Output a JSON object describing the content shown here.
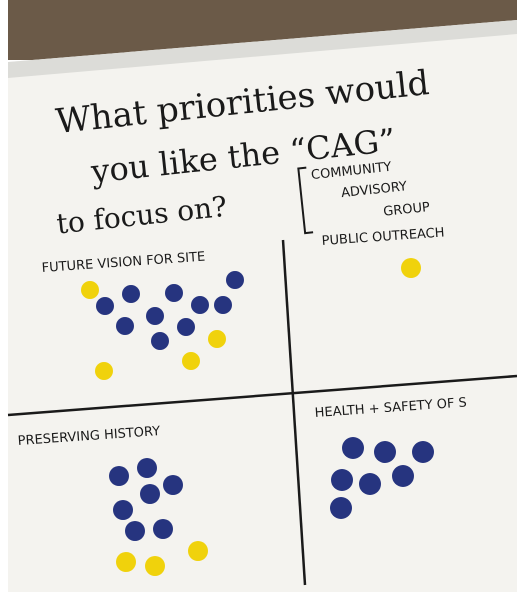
{
  "header": {
    "title_lines": [
      "What priorities would",
      "you like the “CAG”",
      "to focus on?"
    ],
    "bracket_lines": [
      "COMMUNITY",
      "ADVISORY",
      "GROUP"
    ]
  },
  "quadrants": [
    {
      "label": "FUTURE VISION FOR SITE"
    },
    {
      "label": "PUBLIC OUTREACH"
    },
    {
      "label": "PRESERVING HISTORY"
    },
    {
      "label": "HEALTH + SAFETY OF S"
    }
  ]
}
